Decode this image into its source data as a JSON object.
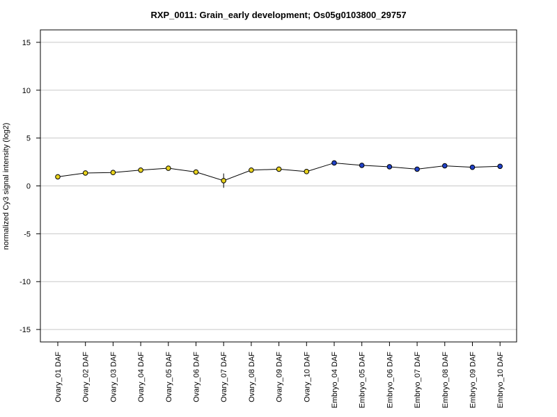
{
  "chart_data": {
    "type": "line",
    "title": "RXP_0011: Grain_early development; Os05g0103800_29757",
    "xlabel": "",
    "ylabel": "normalized Cy3 signal intensity (log2)",
    "ylim": [
      -16.3,
      16.3
    ],
    "yticks": [
      15,
      10,
      5,
      0,
      -5,
      -10,
      -15
    ],
    "ytick_labels": [
      "15",
      "10",
      "5",
      "0",
      "-5",
      "-10",
      "-15"
    ],
    "grid": true,
    "categories": [
      "Ovary_01 DAF",
      "Ovary_02 DAF",
      "Ovary_03 DAF",
      "Ovary_04 DAF",
      "Ovary_05 DAF",
      "Ovary_06 DAF",
      "Ovary_07 DAF",
      "Ovary_08 DAF",
      "Ovary_09 DAF",
      "Ovary_10 DAF",
      "Embryo_04 DAF",
      "Embryo_05 DAF",
      "Embryo_06 DAF",
      "Embryo_07 DAF",
      "Embryo_08 DAF",
      "Embryo_09 DAF",
      "Embryo_10 DAF"
    ],
    "series": [
      {
        "values": [
          0.95,
          1.35,
          1.4,
          1.65,
          1.85,
          1.45,
          0.55,
          1.65,
          1.75,
          1.5,
          2.4,
          2.15,
          2.0,
          1.75,
          2.1,
          1.95,
          2.05
        ],
        "error": [
          0.1,
          0.1,
          0.1,
          0.1,
          0.1,
          0.1,
          0.75,
          0.1,
          0.1,
          0.1,
          0.1,
          0.1,
          0.1,
          0.2,
          0.1,
          0.1,
          0.2
        ],
        "point_colors": [
          "#e8d21d",
          "#e8d21d",
          "#e8d21d",
          "#e8d21d",
          "#e8d21d",
          "#e8d21d",
          "#e8d21d",
          "#e8d21d",
          "#e8d21d",
          "#e8d21d",
          "#2142c8",
          "#2142c8",
          "#2142c8",
          "#2142c8",
          "#2142c8",
          "#2142c8",
          "#2142c8"
        ]
      }
    ],
    "colors": {
      "ovary": "#e8d21d",
      "embryo": "#2142c8",
      "line": "#000000",
      "grid": "#c8c8c8"
    }
  }
}
